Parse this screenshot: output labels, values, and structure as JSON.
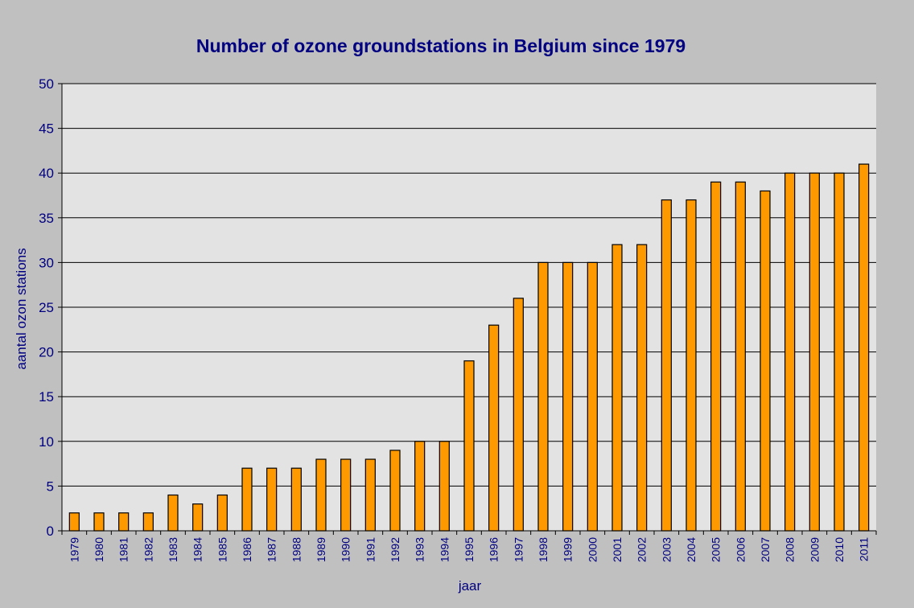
{
  "chart_data": {
    "type": "bar",
    "title": "Number of ozone groundstations in Belgium since 1979",
    "xlabel": "jaar",
    "ylabel": "aantal ozon stations",
    "ylim": [
      0,
      50
    ],
    "yticks": [
      0,
      5,
      10,
      15,
      20,
      25,
      30,
      35,
      40,
      45,
      50
    ],
    "grid": true,
    "legend": "none",
    "categories": [
      "1979",
      "1980",
      "1981",
      "1982",
      "1983",
      "1984",
      "1985",
      "1986",
      "1987",
      "1988",
      "1989",
      "1990",
      "1991",
      "1992",
      "1993",
      "1994",
      "1995",
      "1996",
      "1997",
      "1998",
      "1999",
      "2000",
      "2001",
      "2002",
      "2003",
      "2004",
      "2005",
      "2006",
      "2007",
      "2008",
      "2009",
      "2010",
      "2011"
    ],
    "values": [
      2,
      2,
      2,
      2,
      4,
      3,
      4,
      7,
      7,
      7,
      8,
      8,
      8,
      9,
      10,
      10,
      19,
      23,
      26,
      30,
      30,
      30,
      32,
      32,
      37,
      37,
      39,
      39,
      38,
      40,
      40,
      40,
      41
    ],
    "colors": {
      "bar_fill": "#ff9900",
      "bar_stroke": "#000000",
      "plot_background": "#e3e3e3",
      "page_background": "#c0c0c0",
      "text": "#000080"
    }
  }
}
